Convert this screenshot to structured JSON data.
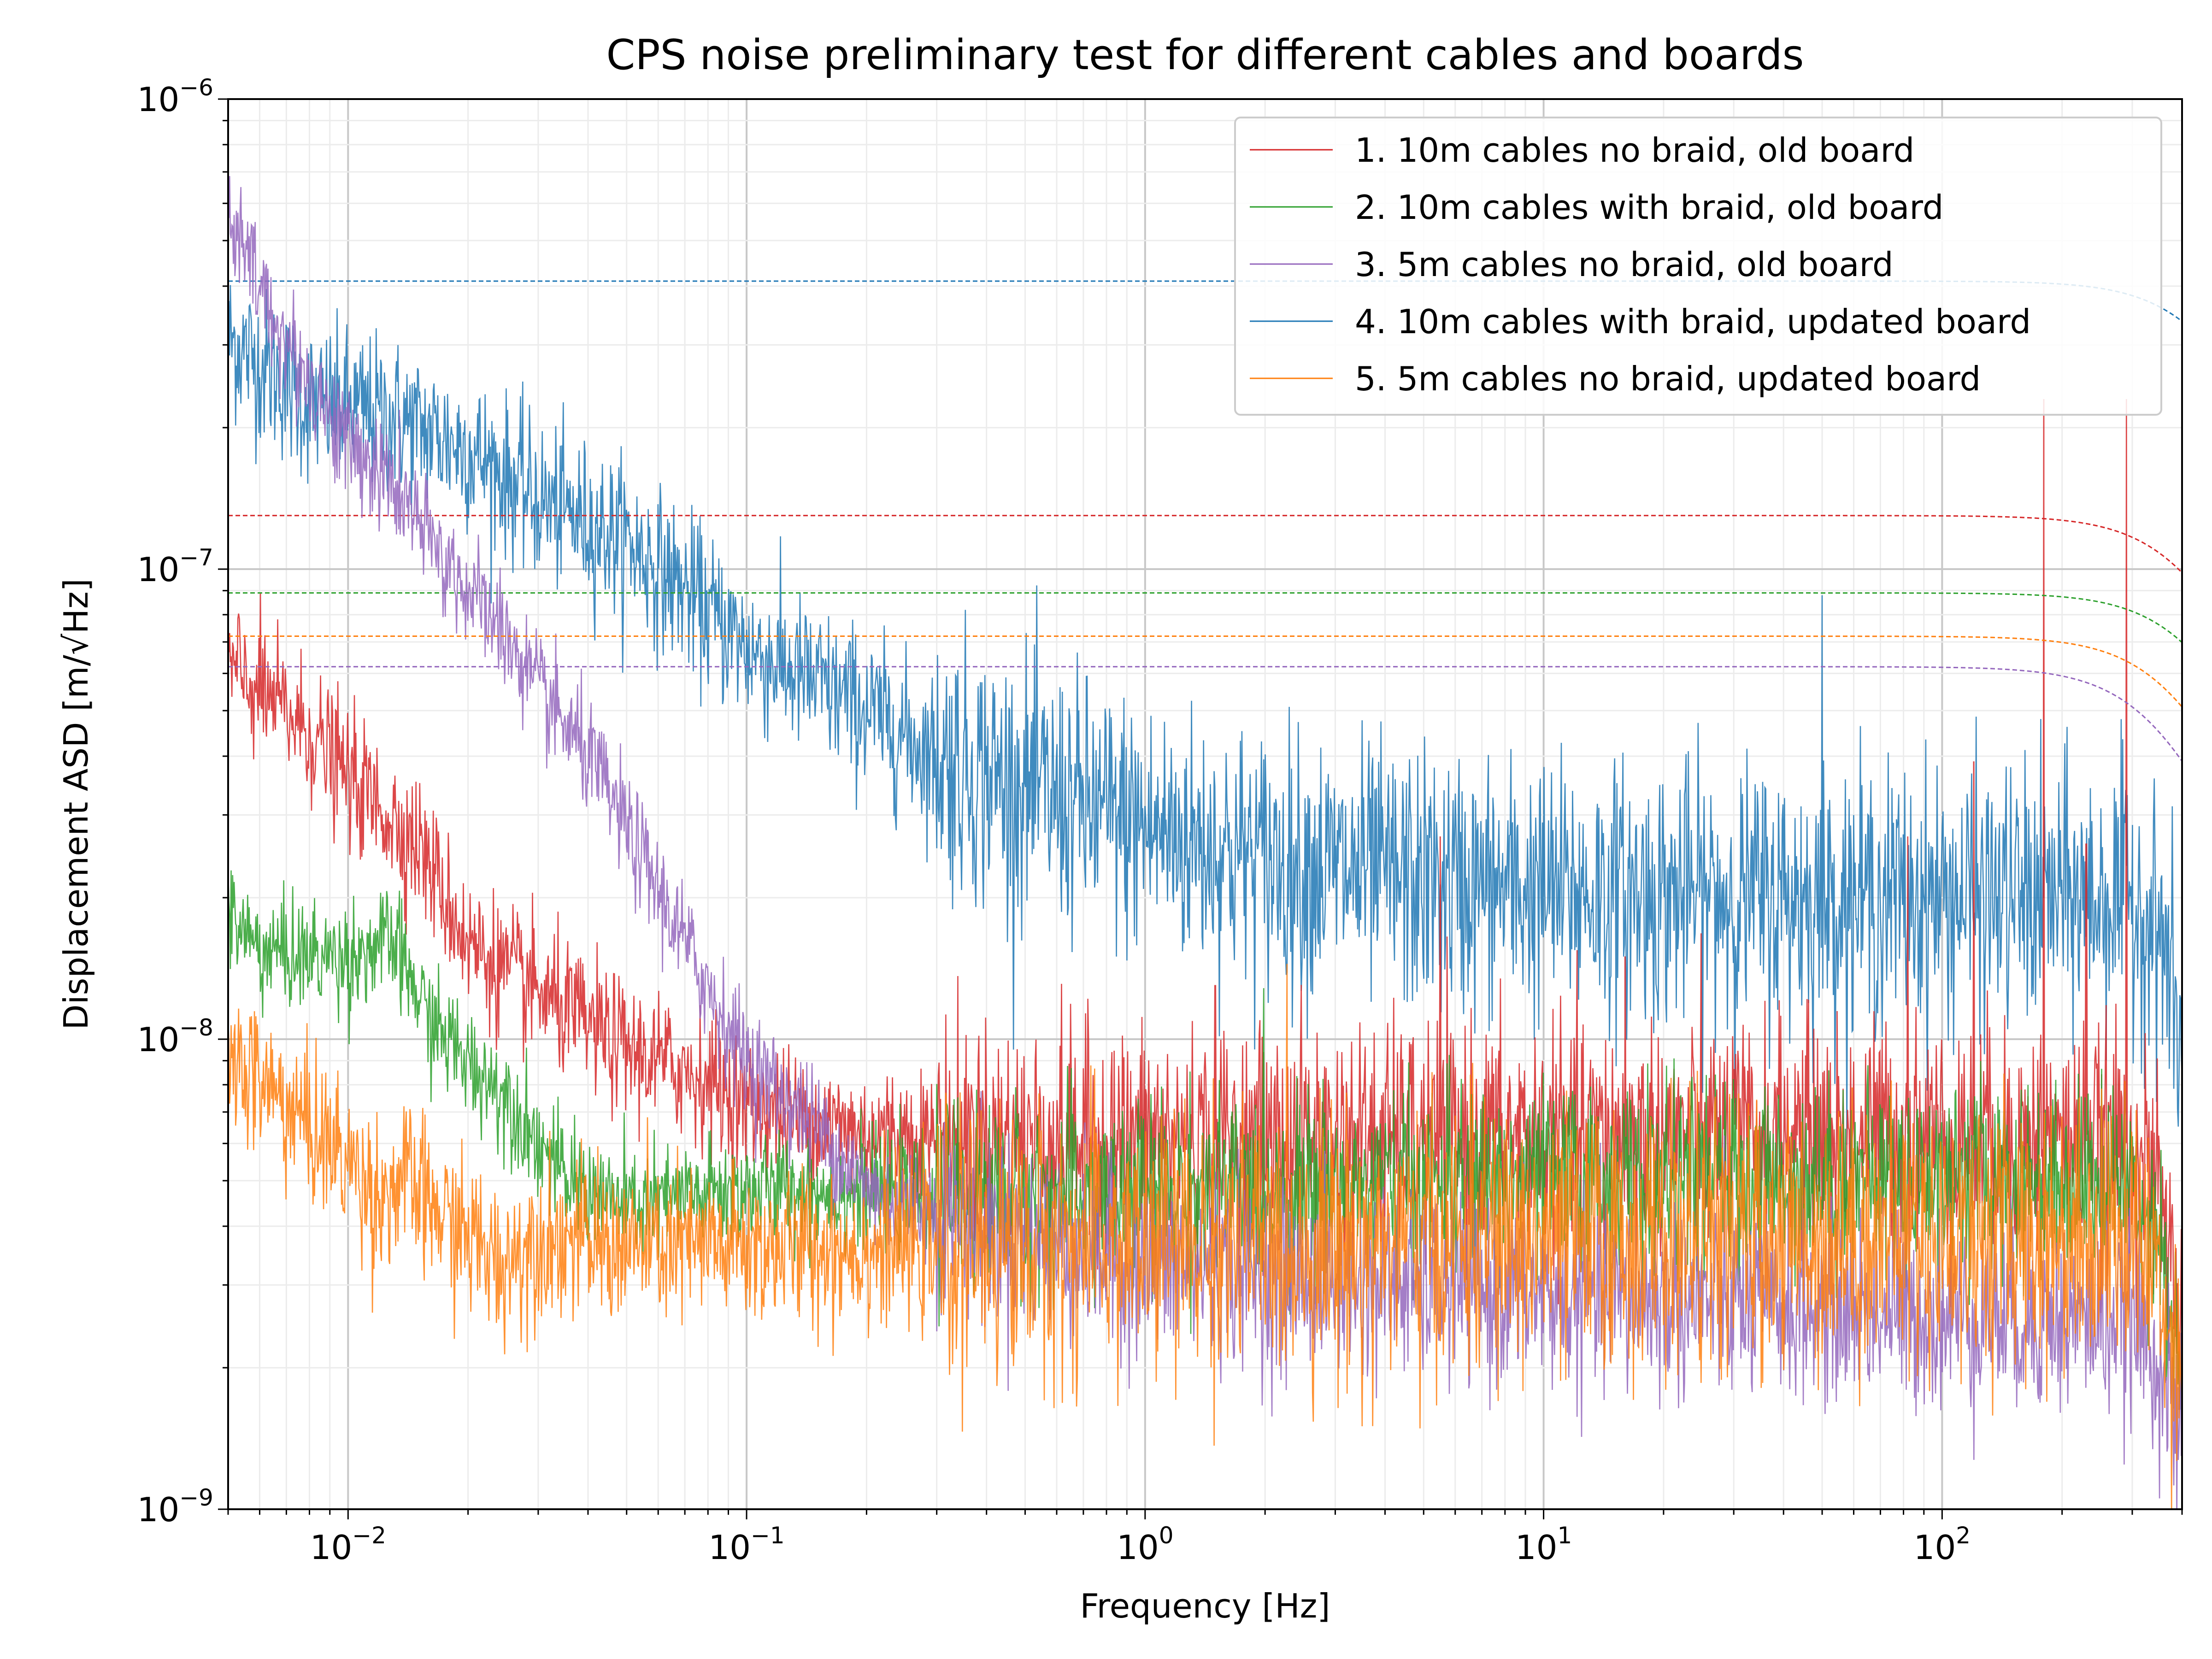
{
  "chart_data": {
    "type": "line",
    "title": "CPS noise preliminary test for different cables and boards",
    "xlabel": "Frequency [Hz]",
    "ylabel": "Displacement ASD [m/√Hz]",
    "x_scale": "log",
    "y_scale": "log",
    "xlim": [
      0.005,
      400
    ],
    "ylim": [
      1e-09,
      1e-06
    ],
    "x_ticks": [
      {
        "value": 0.01,
        "base": "10",
        "exp": "−2"
      },
      {
        "value": 0.1,
        "base": "10",
        "exp": "−1"
      },
      {
        "value": 1,
        "base": "10",
        "exp": "0"
      },
      {
        "value": 10,
        "base": "10",
        "exp": "1"
      },
      {
        "value": 100,
        "base": "10",
        "exp": "2"
      }
    ],
    "y_ticks": [
      {
        "value": 1e-09,
        "base": "10",
        "exp": "−9"
      },
      {
        "value": 1e-08,
        "base": "10",
        "exp": "−8"
      },
      {
        "value": 1e-07,
        "base": "10",
        "exp": "−7"
      },
      {
        "value": 1e-06,
        "base": "10",
        "exp": "−6"
      }
    ],
    "grid": "major and minor",
    "legend_position": "top-right",
    "series": [
      {
        "name": "1. 10m cables no braid, old board",
        "color": "#d62728",
        "noise": 0.12,
        "points": [
          [
            0.005,
            6.2e-08
          ],
          [
            0.008,
            4.5e-08
          ],
          [
            0.01,
            3.6e-08
          ],
          [
            0.015,
            2.6e-08
          ],
          [
            0.02,
            1.6e-08
          ],
          [
            0.03,
            1.25e-08
          ],
          [
            0.05,
            9.5e-09
          ],
          [
            0.08,
            8.2e-09
          ],
          [
            0.1,
            7.2e-09
          ],
          [
            0.2,
            6.3e-09
          ],
          [
            1,
            6.1e-09
          ],
          [
            10,
            6.2e-09
          ],
          [
            100,
            6.3e-09
          ],
          [
            300,
            6e-09
          ],
          [
            350,
            4.5e-09
          ],
          [
            400,
            2.6e-09
          ]
        ],
        "spikes": [
          [
            1.5,
            1.3e-08
          ],
          [
            5.5,
            2.7e-08
          ],
          [
            16,
            1.5e-08
          ],
          [
            82,
            2.7e-08
          ],
          [
            120,
            3.9e-08
          ],
          [
            180,
            2.3e-07
          ],
          [
            230,
            2.6e-08
          ],
          [
            290,
            2.3e-07
          ]
        ],
        "fit_level": 1.3e-07,
        "fit_corner": 430
      },
      {
        "name": "2. 10m cables with braid, old board",
        "color": "#2ca02c",
        "noise": 0.1,
        "points": [
          [
            0.005,
            1.85e-08
          ],
          [
            0.006,
            1.55e-08
          ],
          [
            0.008,
            1.5e-08
          ],
          [
            0.01,
            1.5e-08
          ],
          [
            0.013,
            1.6e-08
          ],
          [
            0.016,
            1.1e-08
          ],
          [
            0.02,
            8.9e-09
          ],
          [
            0.025,
            7.6e-09
          ],
          [
            0.035,
            5e-09
          ],
          [
            0.05,
            4.4e-09
          ],
          [
            0.1,
            4.8e-09
          ],
          [
            0.5,
            4.6e-09
          ],
          [
            1,
            4.7e-09
          ],
          [
            10,
            5e-09
          ],
          [
            100,
            5.1e-09
          ],
          [
            300,
            5e-09
          ],
          [
            350,
            4e-09
          ],
          [
            400,
            1.8e-09
          ]
        ],
        "spikes": [],
        "fit_level": 8.9e-08,
        "fit_corner": 450
      },
      {
        "name": "3. 5m cables no braid, old board",
        "color": "#9467bd",
        "noise": 0.1,
        "points": [
          [
            0.005,
            5.6e-07
          ],
          [
            0.007,
            3e-07
          ],
          [
            0.01,
            1.85e-07
          ],
          [
            0.013,
            1.5e-07
          ],
          [
            0.016,
            1.15e-07
          ],
          [
            0.02,
            9e-08
          ],
          [
            0.025,
            7.2e-08
          ],
          [
            0.03,
            5.5e-08
          ],
          [
            0.04,
            4e-08
          ],
          [
            0.05,
            2.8e-08
          ],
          [
            0.07,
            1.6e-08
          ],
          [
            0.1,
            9e-09
          ],
          [
            0.15,
            6.5e-09
          ],
          [
            0.2,
            4.8e-09
          ],
          [
            0.3,
            4.3e-09
          ],
          [
            0.5,
            3.8e-09
          ],
          [
            1,
            3.3e-09
          ],
          [
            10,
            2.85e-09
          ],
          [
            100,
            2.6e-09
          ],
          [
            300,
            2.5e-09
          ],
          [
            350,
            2.1e-09
          ],
          [
            400,
            1.3e-09
          ]
        ],
        "spikes": [],
        "fit_level": 6.2e-08,
        "fit_corner": 360
      },
      {
        "name": "4. 10m cables with braid, updated board",
        "color": "#1f77b4",
        "noise": 0.14,
        "points": [
          [
            0.005,
            3.1e-07
          ],
          [
            0.008,
            2.25e-07
          ],
          [
            0.01,
            2.2e-07
          ],
          [
            0.013,
            2.1e-07
          ],
          [
            0.02,
            1.8e-07
          ],
          [
            0.03,
            1.4e-07
          ],
          [
            0.05,
            1.15e-07
          ],
          [
            0.07,
            9e-08
          ],
          [
            0.1,
            6.8e-08
          ],
          [
            0.2,
            5e-08
          ],
          [
            0.3,
            4e-08
          ],
          [
            0.5,
            3.4e-08
          ],
          [
            1,
            2.8e-08
          ],
          [
            2,
            2.4e-08
          ],
          [
            5,
            2.15e-08
          ],
          [
            10,
            2.05e-08
          ],
          [
            50,
            2e-08
          ],
          [
            100,
            2e-08
          ],
          [
            300,
            2e-08
          ],
          [
            360,
            1.6e-08
          ],
          [
            400,
            9e-09
          ]
        ],
        "spikes": [
          [
            50,
            8.8e-08
          ]
        ],
        "fit_level": 4.1e-07,
        "fit_corner": 480
      },
      {
        "name": "5. 5m cables no braid, updated board",
        "color": "#ff7f0e",
        "noise": 0.14,
        "points": [
          [
            0.005,
            9e-09
          ],
          [
            0.006,
            8.2e-09
          ],
          [
            0.008,
            6.5e-09
          ],
          [
            0.01,
            5.5e-09
          ],
          [
            0.012,
            4.6e-09
          ],
          [
            0.014,
            5e-09
          ],
          [
            0.016,
            4.4e-09
          ],
          [
            0.02,
            3.8e-09
          ],
          [
            0.024,
            3.3e-09
          ],
          [
            0.03,
            3.8e-09
          ],
          [
            0.05,
            3.6e-09
          ],
          [
            0.1,
            3.6e-09
          ],
          [
            1,
            3.6e-09
          ],
          [
            10,
            3.7e-09
          ],
          [
            100,
            3.8e-09
          ],
          [
            300,
            3.8e-09
          ],
          [
            350,
            3.1e-09
          ],
          [
            400,
            2.1e-09
          ]
        ],
        "spikes": [],
        "fit_level": 7.2e-08,
        "fit_corner": 400
      }
    ]
  }
}
